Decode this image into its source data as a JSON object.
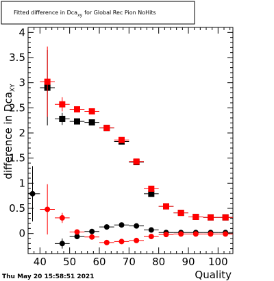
{
  "chart_data": {
    "type": "scatter",
    "title": "Fitted difference in Dca",
    "title_subscript": "xy",
    "title_suffix": "for Global Rec Pion NoHits",
    "xlabel": "Quality",
    "ylabel": "difference in Dca",
    "ylabel_subscript": "XY",
    "xlim": [
      36,
      105
    ],
    "ylim": [
      -0.4,
      4.1
    ],
    "xticks": [
      40,
      50,
      60,
      70,
      80,
      90,
      100
    ],
    "yticks": [
      0,
      0.5,
      1,
      1.5,
      2,
      2.5,
      3,
      3.5,
      4
    ],
    "ytick_labels": [
      "0",
      "0.5",
      "1",
      "1.5",
      "2",
      "2.5",
      "3",
      "3.5",
      "4"
    ],
    "grid": false,
    "series": [
      {
        "marker": "square",
        "color": "#000000",
        "points": [
          {
            "x": 42.5,
            "y": 2.9,
            "yerr": 0.75,
            "xerr": 2.5
          },
          {
            "x": 47.5,
            "y": 2.28,
            "yerr": 0.12,
            "xerr": 2.5
          },
          {
            "x": 52.5,
            "y": 2.23,
            "yerr": 0.05,
            "xerr": 2.5
          },
          {
            "x": 57.5,
            "y": 2.21,
            "yerr": 0.04,
            "xerr": 2.5
          },
          {
            "x": 62.5,
            "y": 2.1,
            "yerr": 0.03,
            "xerr": 2.5
          },
          {
            "x": 67.5,
            "y": 1.83,
            "yerr": 0.03,
            "xerr": 2.5
          },
          {
            "x": 72.5,
            "y": 1.42,
            "yerr": 0.02,
            "xerr": 2.5
          },
          {
            "x": 77.5,
            "y": 0.79,
            "yerr": 0.02,
            "xerr": 2.5
          },
          {
            "x": 82.5,
            "y": 0.54,
            "yerr": 0.02,
            "xerr": 2.5
          },
          {
            "x": 87.5,
            "y": 0.41,
            "yerr": 0.02,
            "xerr": 2.5
          },
          {
            "x": 92.5,
            "y": 0.33,
            "yerr": 0.02,
            "xerr": 2.5
          },
          {
            "x": 97.5,
            "y": 0.32,
            "yerr": 0.02,
            "xerr": 2.5
          },
          {
            "x": 102.5,
            "y": 0.32,
            "yerr": 0.02,
            "xerr": 2.5
          }
        ]
      },
      {
        "marker": "square",
        "color": "#ff0000",
        "points": [
          {
            "x": 42.5,
            "y": 3.02,
            "yerr": 0.7,
            "xerr": 2.5
          },
          {
            "x": 47.5,
            "y": 2.57,
            "yerr": 0.14,
            "xerr": 2.5
          },
          {
            "x": 52.5,
            "y": 2.47,
            "yerr": 0.06,
            "xerr": 2.5
          },
          {
            "x": 57.5,
            "y": 2.43,
            "yerr": 0.04,
            "xerr": 2.5
          },
          {
            "x": 62.5,
            "y": 2.1,
            "yerr": 0.03,
            "xerr": 2.5
          },
          {
            "x": 67.5,
            "y": 1.86,
            "yerr": 0.03,
            "xerr": 2.5
          },
          {
            "x": 72.5,
            "y": 1.43,
            "yerr": 0.02,
            "xerr": 2.5
          },
          {
            "x": 77.5,
            "y": 0.89,
            "yerr": 0.02,
            "xerr": 2.5
          },
          {
            "x": 82.5,
            "y": 0.54,
            "yerr": 0.02,
            "xerr": 2.5
          },
          {
            "x": 87.5,
            "y": 0.41,
            "yerr": 0.02,
            "xerr": 2.5
          },
          {
            "x": 92.5,
            "y": 0.33,
            "yerr": 0.02,
            "xerr": 2.5
          },
          {
            "x": 97.5,
            "y": 0.32,
            "yerr": 0.02,
            "xerr": 2.5
          },
          {
            "x": 102.5,
            "y": 0.32,
            "yerr": 0.02,
            "xerr": 2.5
          }
        ]
      },
      {
        "marker": "circle",
        "color": "#000000",
        "points": [
          {
            "x": 37.5,
            "y": 0.79,
            "yerr": 0.55,
            "xerr": 2.5
          },
          {
            "x": 47.5,
            "y": -0.2,
            "yerr": 0.1,
            "xerr": 2.5
          },
          {
            "x": 52.5,
            "y": -0.06,
            "yerr": 0.05,
            "xerr": 2.5
          },
          {
            "x": 57.5,
            "y": 0.04,
            "yerr": 0.04,
            "xerr": 2.5
          },
          {
            "x": 62.5,
            "y": 0.13,
            "yerr": 0.03,
            "xerr": 2.5
          },
          {
            "x": 67.5,
            "y": 0.17,
            "yerr": 0.03,
            "xerr": 2.5
          },
          {
            "x": 72.5,
            "y": 0.15,
            "yerr": 0.02,
            "xerr": 2.5
          },
          {
            "x": 77.5,
            "y": 0.07,
            "yerr": 0.02,
            "xerr": 2.5
          },
          {
            "x": 82.5,
            "y": 0.02,
            "yerr": 0.02,
            "xerr": 2.5
          },
          {
            "x": 87.5,
            "y": 0.02,
            "yerr": 0.02,
            "xerr": 2.5
          },
          {
            "x": 92.5,
            "y": 0.02,
            "yerr": 0.02,
            "xerr": 2.5
          },
          {
            "x": 97.5,
            "y": 0.02,
            "yerr": 0.02,
            "xerr": 2.5
          },
          {
            "x": 102.5,
            "y": 0.02,
            "yerr": 0.02,
            "xerr": 2.5
          }
        ]
      },
      {
        "marker": "circle",
        "color": "#ff0000",
        "points": [
          {
            "x": 42.5,
            "y": 0.48,
            "yerr": 0.5,
            "xerr": 2.5
          },
          {
            "x": 47.5,
            "y": 0.31,
            "yerr": 0.1,
            "xerr": 2.5
          },
          {
            "x": 52.5,
            "y": 0.03,
            "yerr": 0.05,
            "xerr": 2.5
          },
          {
            "x": 57.5,
            "y": -0.07,
            "yerr": 0.04,
            "xerr": 2.5
          },
          {
            "x": 62.5,
            "y": -0.18,
            "yerr": 0.03,
            "xerr": 2.5
          },
          {
            "x": 67.5,
            "y": -0.16,
            "yerr": 0.03,
            "xerr": 2.5
          },
          {
            "x": 72.5,
            "y": -0.14,
            "yerr": 0.02,
            "xerr": 2.5
          },
          {
            "x": 77.5,
            "y": -0.06,
            "yerr": 0.02,
            "xerr": 2.5
          },
          {
            "x": 82.5,
            "y": -0.02,
            "yerr": 0.02,
            "xerr": 2.5
          },
          {
            "x": 87.5,
            "y": -0.01,
            "yerr": 0.02,
            "xerr": 2.5
          },
          {
            "x": 92.5,
            "y": -0.01,
            "yerr": 0.02,
            "xerr": 2.5
          },
          {
            "x": 97.5,
            "y": -0.01,
            "yerr": 0.02,
            "xerr": 2.5
          },
          {
            "x": 102.5,
            "y": -0.01,
            "yerr": 0.02,
            "xerr": 2.5
          }
        ]
      }
    ]
  },
  "footer": {
    "timestamp": "Thu May 20 15:58:51 2021"
  }
}
